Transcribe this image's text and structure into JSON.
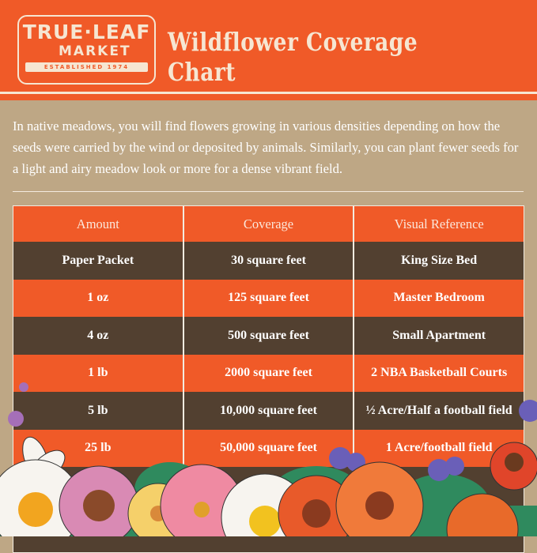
{
  "brand": {
    "name_line1": "TRUE·LEAF",
    "name_line2": "MARKET",
    "established": "ESTABLISHED 1974"
  },
  "title": "Wildflower Coverage Chart",
  "intro": "In native meadows, you will find flowers growing in various densities depending on how the seeds were carried by the wind or deposited by animals. Similarly, you can plant fewer seeds for a light and airy meadow look or more for a dense vibrant field.",
  "colors": {
    "orange": "#f05a28",
    "brown": "#524030",
    "tan": "#bea785",
    "cream": "#f6e6d2"
  },
  "table": {
    "headers": [
      "Amount",
      "Coverage",
      "Visual Reference"
    ],
    "rows": [
      [
        "Paper Packet",
        "30 square feet",
        "King Size Bed"
      ],
      [
        "1 oz",
        "125 square feet",
        "Master Bedroom"
      ],
      [
        "4 oz",
        "500 square feet",
        "Small Apartment"
      ],
      [
        "1 lb",
        "2000 square feet",
        "2 NBA Basketball Courts"
      ],
      [
        "5 lb",
        "10,000 square feet",
        "½ Acre/Half a football field"
      ],
      [
        "25 lb",
        "50,000 square feet",
        "1 Acre/football field"
      ]
    ]
  }
}
